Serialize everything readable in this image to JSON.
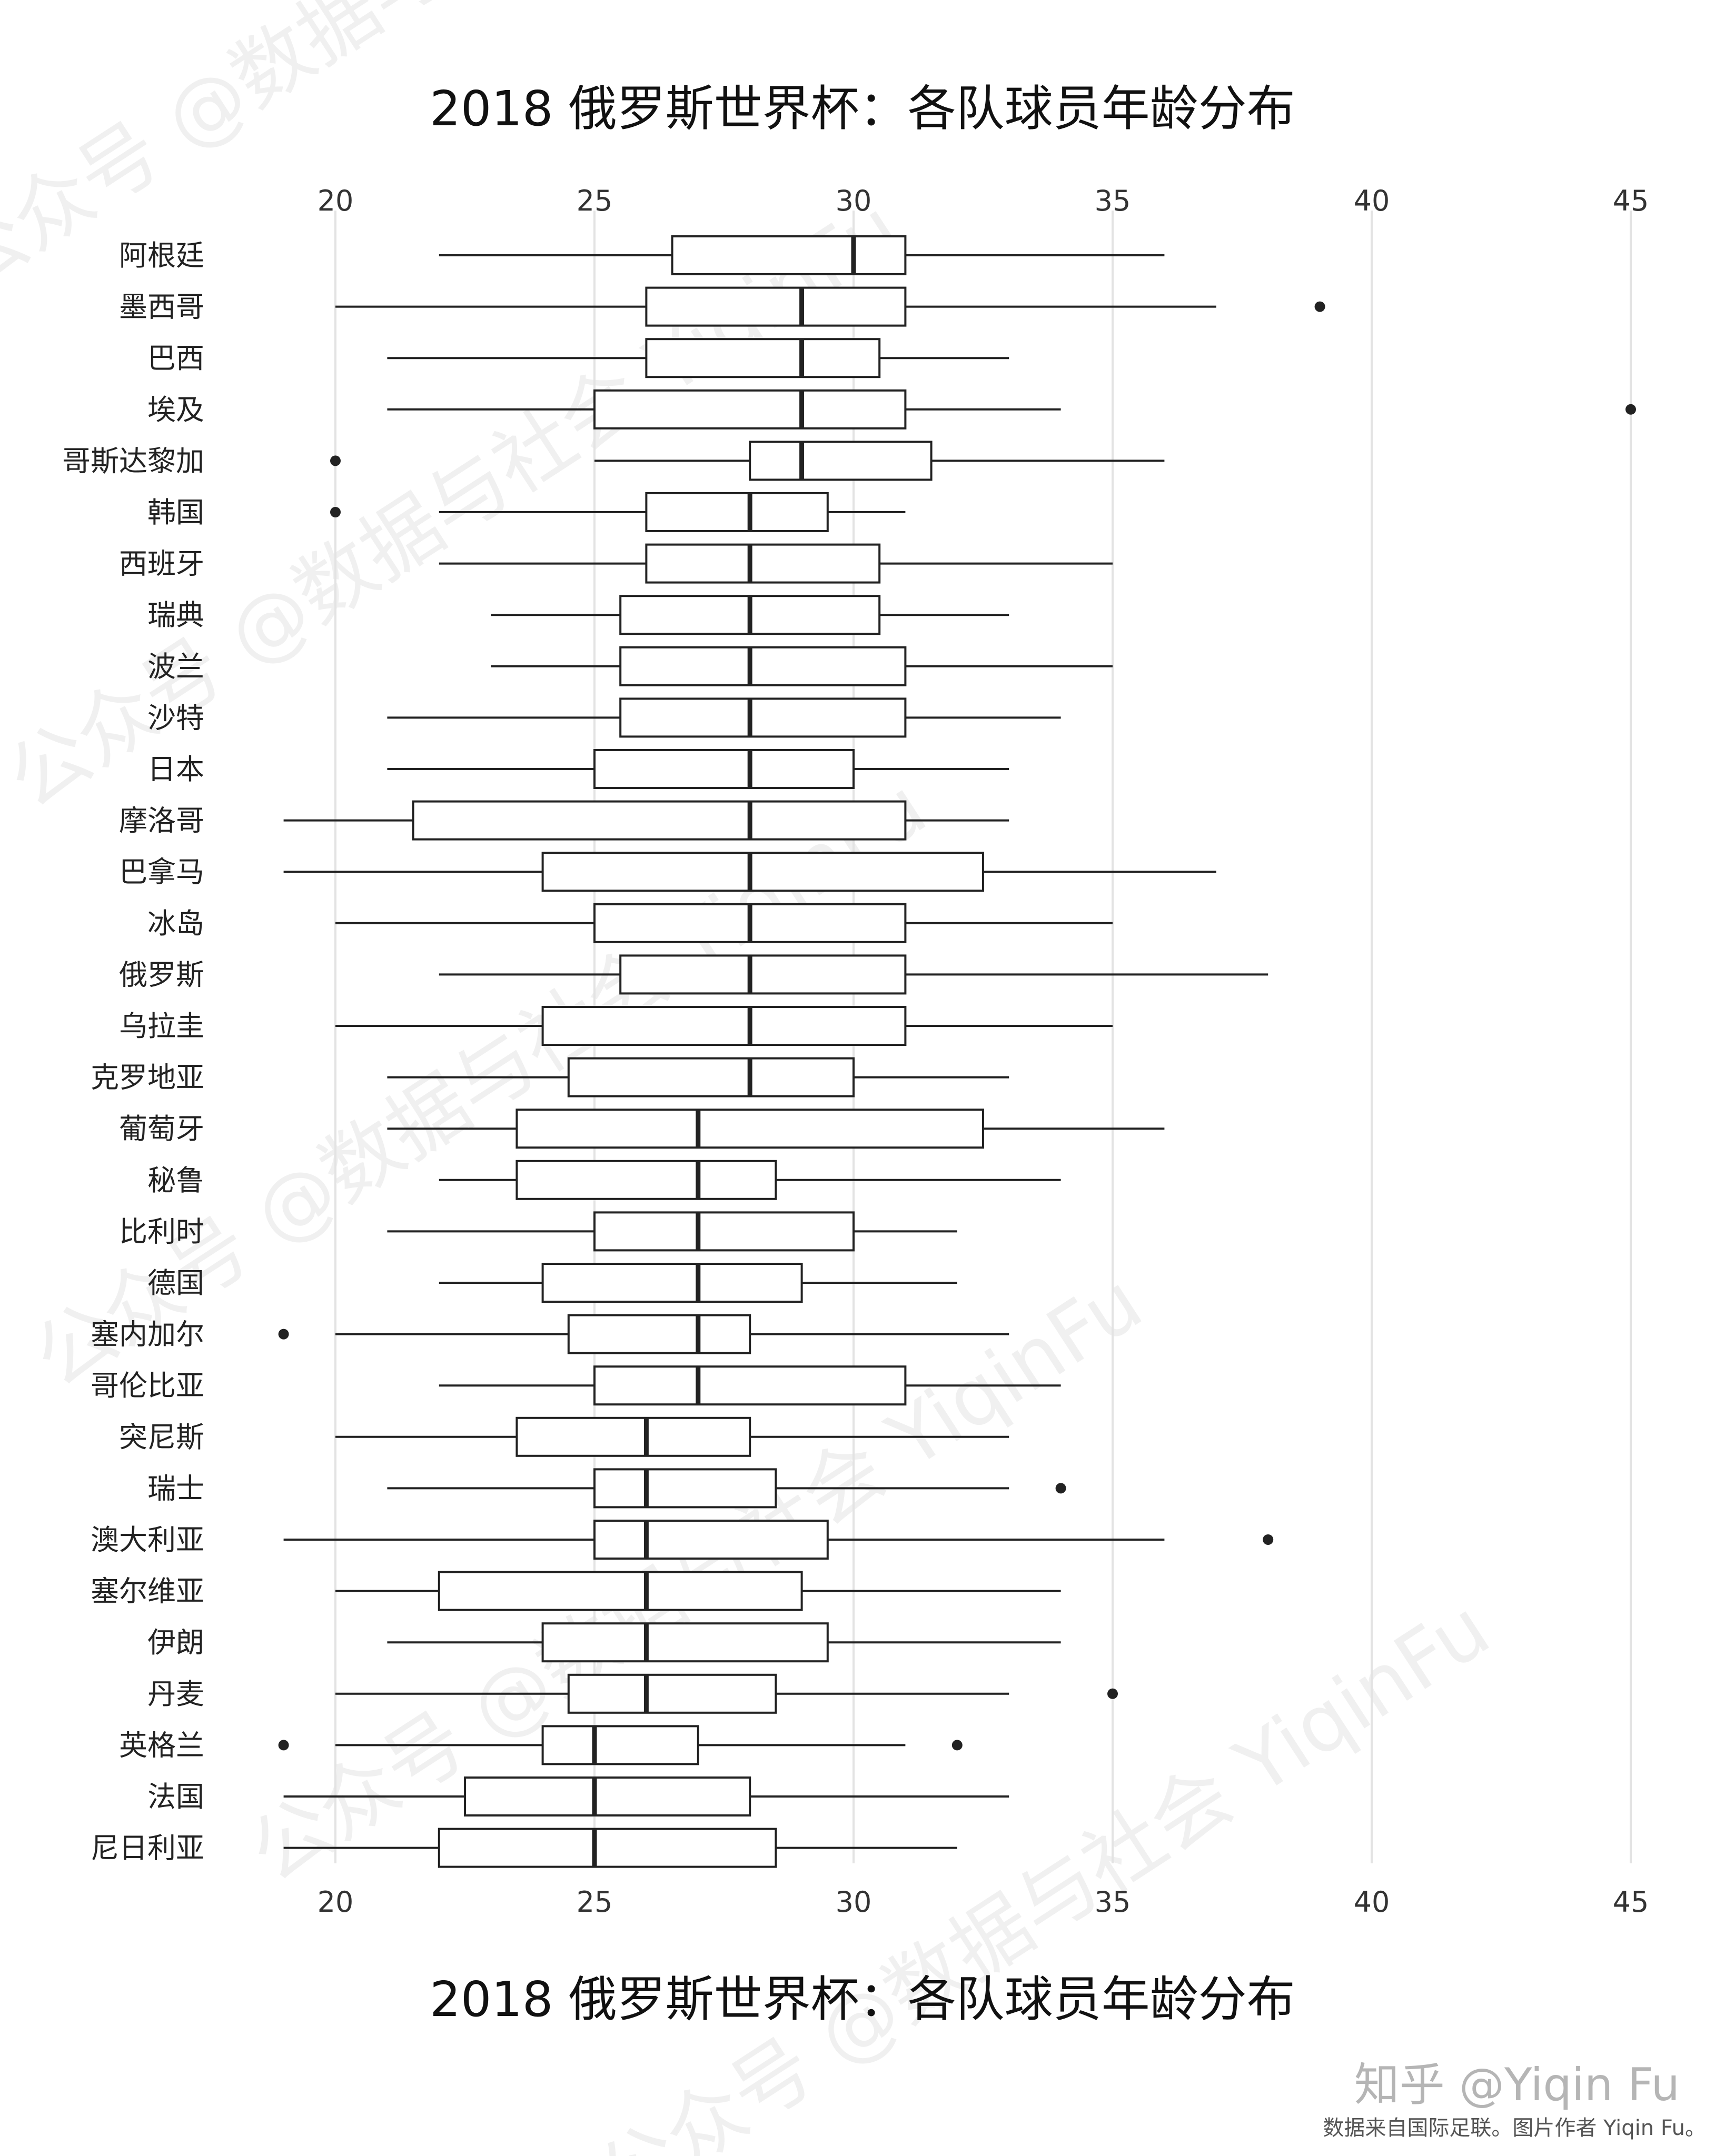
{
  "chart_data": {
    "type": "boxplot",
    "title": "2018 俄罗斯世界杯：各队球员年龄分布",
    "xlim": [
      19,
      45
    ],
    "x_ticks": [
      20,
      25,
      30,
      35,
      40,
      45
    ],
    "x_axis_position": "top-and-bottom",
    "grid": "vertical",
    "categories": [
      "阿根廷",
      "墨西哥",
      "巴西",
      "埃及",
      "哥斯达黎加",
      "韩国",
      "西班牙",
      "瑞典",
      "波兰",
      "沙特",
      "日本",
      "摩洛哥",
      "巴拿马",
      "冰岛",
      "俄罗斯",
      "乌拉圭",
      "克罗地亚",
      "葡萄牙",
      "秘鲁",
      "比利时",
      "德国",
      "塞内加尔",
      "哥伦比亚",
      "突尼斯",
      "瑞士",
      "澳大利亚",
      "塞尔维亚",
      "伊朗",
      "丹麦",
      "英格兰",
      "法国",
      "尼日利亚"
    ],
    "boxes": [
      {
        "name": "阿根廷",
        "whisker_low": 22,
        "q1": 26.5,
        "median": 30,
        "q3": 31,
        "whisker_high": 36,
        "outliers": []
      },
      {
        "name": "墨西哥",
        "whisker_low": 20,
        "q1": 26,
        "median": 29,
        "q3": 31,
        "whisker_high": 37,
        "outliers": [
          39
        ]
      },
      {
        "name": "巴西",
        "whisker_low": 21,
        "q1": 26,
        "median": 29,
        "q3": 30.5,
        "whisker_high": 33,
        "outliers": []
      },
      {
        "name": "埃及",
        "whisker_low": 21,
        "q1": 25,
        "median": 29,
        "q3": 31,
        "whisker_high": 34,
        "outliers": [
          45
        ]
      },
      {
        "name": "哥斯达黎加",
        "whisker_low": 25,
        "q1": 28,
        "median": 29,
        "q3": 31.5,
        "whisker_high": 36,
        "outliers": [
          20
        ]
      },
      {
        "name": "韩国",
        "whisker_low": 22,
        "q1": 26,
        "median": 28,
        "q3": 29.5,
        "whisker_high": 31,
        "outliers": [
          20
        ]
      },
      {
        "name": "西班牙",
        "whisker_low": 22,
        "q1": 26,
        "median": 28,
        "q3": 30.5,
        "whisker_high": 35,
        "outliers": []
      },
      {
        "name": "瑞典",
        "whisker_low": 23,
        "q1": 25.5,
        "median": 28,
        "q3": 30.5,
        "whisker_high": 33,
        "outliers": []
      },
      {
        "name": "波兰",
        "whisker_low": 23,
        "q1": 25.5,
        "median": 28,
        "q3": 31,
        "whisker_high": 35,
        "outliers": []
      },
      {
        "name": "沙特",
        "whisker_low": 21,
        "q1": 25.5,
        "median": 28,
        "q3": 31,
        "whisker_high": 34,
        "outliers": []
      },
      {
        "name": "日本",
        "whisker_low": 21,
        "q1": 25,
        "median": 28,
        "q3": 30,
        "whisker_high": 33,
        "outliers": []
      },
      {
        "name": "摩洛哥",
        "whisker_low": 19,
        "q1": 21.5,
        "median": 28,
        "q3": 31,
        "whisker_high": 33,
        "outliers": []
      },
      {
        "name": "巴拿马",
        "whisker_low": 19,
        "q1": 24,
        "median": 28,
        "q3": 32.5,
        "whisker_high": 37,
        "outliers": []
      },
      {
        "name": "冰岛",
        "whisker_low": 20,
        "q1": 25,
        "median": 28,
        "q3": 31,
        "whisker_high": 35,
        "outliers": []
      },
      {
        "name": "俄罗斯",
        "whisker_low": 22,
        "q1": 25.5,
        "median": 28,
        "q3": 31,
        "whisker_high": 38,
        "outliers": []
      },
      {
        "name": "乌拉圭",
        "whisker_low": 20,
        "q1": 24,
        "median": 28,
        "q3": 31,
        "whisker_high": 35,
        "outliers": []
      },
      {
        "name": "克罗地亚",
        "whisker_low": 21,
        "q1": 24.5,
        "median": 28,
        "q3": 30,
        "whisker_high": 33,
        "outliers": []
      },
      {
        "name": "葡萄牙",
        "whisker_low": 21,
        "q1": 23.5,
        "median": 27,
        "q3": 32.5,
        "whisker_high": 36,
        "outliers": []
      },
      {
        "name": "秘鲁",
        "whisker_low": 22,
        "q1": 23.5,
        "median": 27,
        "q3": 28.5,
        "whisker_high": 34,
        "outliers": []
      },
      {
        "name": "比利时",
        "whisker_low": 21,
        "q1": 25,
        "median": 27,
        "q3": 30,
        "whisker_high": 32,
        "outliers": []
      },
      {
        "name": "德国",
        "whisker_low": 22,
        "q1": 24,
        "median": 27,
        "q3": 29,
        "whisker_high": 32,
        "outliers": []
      },
      {
        "name": "塞内加尔",
        "whisker_low": 20,
        "q1": 24.5,
        "median": 27,
        "q3": 28,
        "whisker_high": 33,
        "outliers": [
          19
        ]
      },
      {
        "name": "哥伦比亚",
        "whisker_low": 22,
        "q1": 25,
        "median": 27,
        "q3": 31,
        "whisker_high": 34,
        "outliers": []
      },
      {
        "name": "突尼斯",
        "whisker_low": 20,
        "q1": 23.5,
        "median": 26,
        "q3": 28,
        "whisker_high": 33,
        "outliers": []
      },
      {
        "name": "瑞士",
        "whisker_low": 21,
        "q1": 25,
        "median": 26,
        "q3": 28.5,
        "whisker_high": 33,
        "outliers": [
          34
        ]
      },
      {
        "name": "澳大利亚",
        "whisker_low": 19,
        "q1": 25,
        "median": 26,
        "q3": 29.5,
        "whisker_high": 36,
        "outliers": [
          38
        ]
      },
      {
        "name": "塞尔维亚",
        "whisker_low": 20,
        "q1": 22,
        "median": 26,
        "q3": 29,
        "whisker_high": 34,
        "outliers": []
      },
      {
        "name": "伊朗",
        "whisker_low": 21,
        "q1": 24,
        "median": 26,
        "q3": 29.5,
        "whisker_high": 34,
        "outliers": []
      },
      {
        "name": "丹麦",
        "whisker_low": 20,
        "q1": 24.5,
        "median": 26,
        "q3": 28.5,
        "whisker_high": 33,
        "outliers": [
          35
        ]
      },
      {
        "name": "英格兰",
        "whisker_low": 20,
        "q1": 24,
        "median": 25,
        "q3": 27,
        "whisker_high": 31,
        "outliers": [
          19,
          32
        ]
      },
      {
        "name": "法国",
        "whisker_low": 19,
        "q1": 22.5,
        "median": 25,
        "q3": 28,
        "whisker_high": 33,
        "outliers": []
      },
      {
        "name": "尼日利亚",
        "whisker_low": 19,
        "q1": 22,
        "median": 25,
        "q3": 28.5,
        "whisker_high": 32,
        "outliers": []
      }
    ]
  },
  "watermarks": {
    "marks": [
      "公众号 @数据与社会 YiqinFu",
      "公众号 @数据与社会 YiqinFu",
      "公众号 @数据与社会 YiqinFu",
      "公众号 @数据与社会 YiqinFu",
      "公众号 @数据与社会 YiqinFu"
    ],
    "opacity": 0.06
  },
  "credit": {
    "main": "知乎 @Yiqin Fu",
    "sub": "数据来自国际足联。图片作者 Yiqin Fu。"
  },
  "colors": {
    "ink": "#222222",
    "grid": "#e3e3e3",
    "background": "#ffffff"
  }
}
